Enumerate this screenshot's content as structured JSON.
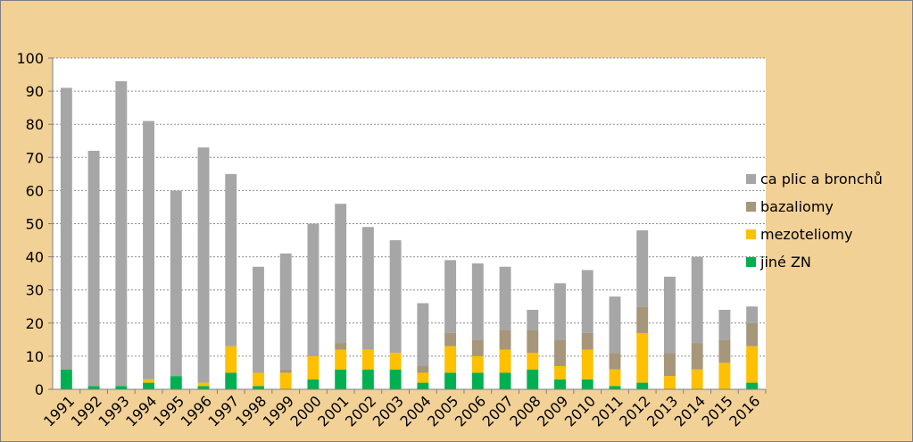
{
  "chart_data": {
    "type": "bar",
    "stacked": true,
    "categories": [
      "1991",
      "1992",
      "1993",
      "1994",
      "1995",
      "1996",
      "1997",
      "1998",
      "1999",
      "2000",
      "2001",
      "2002",
      "2003",
      "2004",
      "2005",
      "2006",
      "2007",
      "2008",
      "2009",
      "2010",
      "2011",
      "2012",
      "2013",
      "2014",
      "2015",
      "2016"
    ],
    "series": [
      {
        "name": "jiné ZN",
        "color": "#00b050",
        "values": [
          6,
          1,
          1,
          2,
          4,
          1,
          5,
          1,
          0,
          3,
          6,
          6,
          6,
          2,
          5,
          5,
          5,
          6,
          3,
          3,
          1,
          2,
          0,
          0,
          0,
          2
        ]
      },
      {
        "name": "mezoteliomy",
        "color": "#ffc000",
        "values": [
          0,
          0,
          0,
          1,
          0,
          1,
          8,
          4,
          5,
          7,
          6,
          6,
          5,
          3,
          8,
          5,
          7,
          5,
          4,
          9,
          5,
          15,
          4,
          6,
          8,
          11
        ]
      },
      {
        "name": "bazaliomy",
        "color": "#a6967a",
        "values": [
          0,
          0,
          0,
          0,
          0,
          0,
          0,
          0,
          1,
          0,
          2,
          0,
          0,
          2,
          4,
          5,
          6,
          7,
          8,
          5,
          5,
          8,
          7,
          8,
          7,
          7
        ]
      },
      {
        "name": "ca plic a bronchů",
        "color": "#a6a6a6",
        "values": [
          85,
          71,
          92,
          78,
          56,
          71,
          52,
          32,
          35,
          40,
          42,
          37,
          34,
          19,
          22,
          23,
          19,
          6,
          17,
          19,
          17,
          23,
          23,
          26,
          9,
          5
        ]
      }
    ],
    "ylim": [
      0,
      100
    ],
    "yticks": [
      "0",
      "10",
      "20",
      "30",
      "40",
      "50",
      "60",
      "70",
      "80",
      "90",
      "100"
    ],
    "grid": true,
    "legend_position": "right",
    "legend_order": [
      "ca plic a bronchů",
      "bazaliomy",
      "mezoteliomy",
      "jiné ZN"
    ]
  }
}
